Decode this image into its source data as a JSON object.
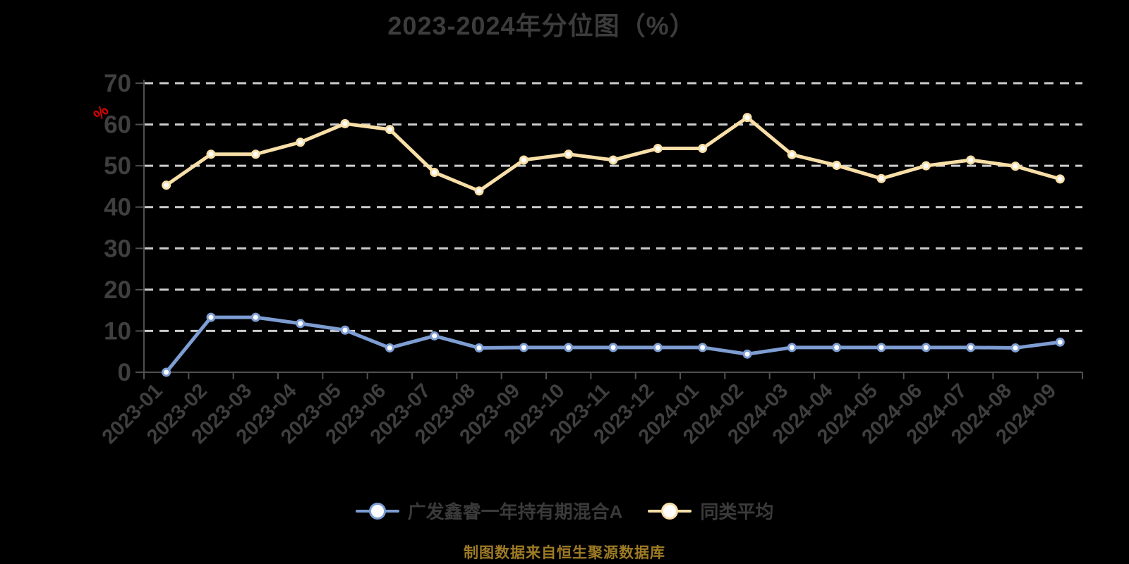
{
  "page": {
    "title": "2023-2024年分位图（%）",
    "source_note": "制图数据来自恒生聚源数据库"
  },
  "colors": {
    "background": "#000000",
    "title_text": "#3c3c3c",
    "axis_text": "#3f3f3f",
    "axis_line": "#4f4f4f",
    "gridline": "#cccccc",
    "unit_label": "#e60000",
    "source_text": "#9e7b25",
    "series_fund": "#7d9dd3",
    "series_average": "#f8dfa8"
  },
  "chart_data": {
    "type": "line",
    "title": "2023-2024年分位图（%）",
    "ylabel": "%",
    "xlabel": "",
    "ylim": [
      0,
      70
    ],
    "yticks": [
      0,
      10,
      20,
      30,
      40,
      50,
      60,
      70
    ],
    "grid": "horizontal-dashed",
    "legend_position": "bottom",
    "categories": [
      "2023-01",
      "2023-02",
      "2023-03",
      "2023-04",
      "2023-05",
      "2023-06",
      "2023-07",
      "2023-08",
      "2023-09",
      "2023-10",
      "2023-11",
      "2023-12",
      "2024-01",
      "2024-02",
      "2024-03",
      "2024-04",
      "2024-05",
      "2024-06",
      "2024-07",
      "2024-08",
      "2024-09"
    ],
    "series": [
      {
        "name": "广发鑫睿一年持有期混合A",
        "color": "#7d9dd3",
        "values": [
          0.0,
          13.3,
          13.3,
          11.8,
          10.2,
          5.9,
          8.8,
          5.9,
          6.0,
          6.0,
          6.0,
          6.0,
          6.0,
          4.4,
          6.0,
          6.0,
          6.0,
          6.0,
          6.0,
          5.9,
          7.3
        ]
      },
      {
        "name": "同类平均",
        "color": "#f8dfa8",
        "values": [
          45.3,
          52.8,
          52.8,
          55.7,
          60.2,
          58.8,
          48.4,
          43.9,
          51.4,
          52.8,
          51.4,
          54.2,
          54.2,
          61.7,
          52.7,
          50.1,
          46.9,
          50.0,
          51.4,
          49.9,
          46.8
        ]
      }
    ]
  }
}
